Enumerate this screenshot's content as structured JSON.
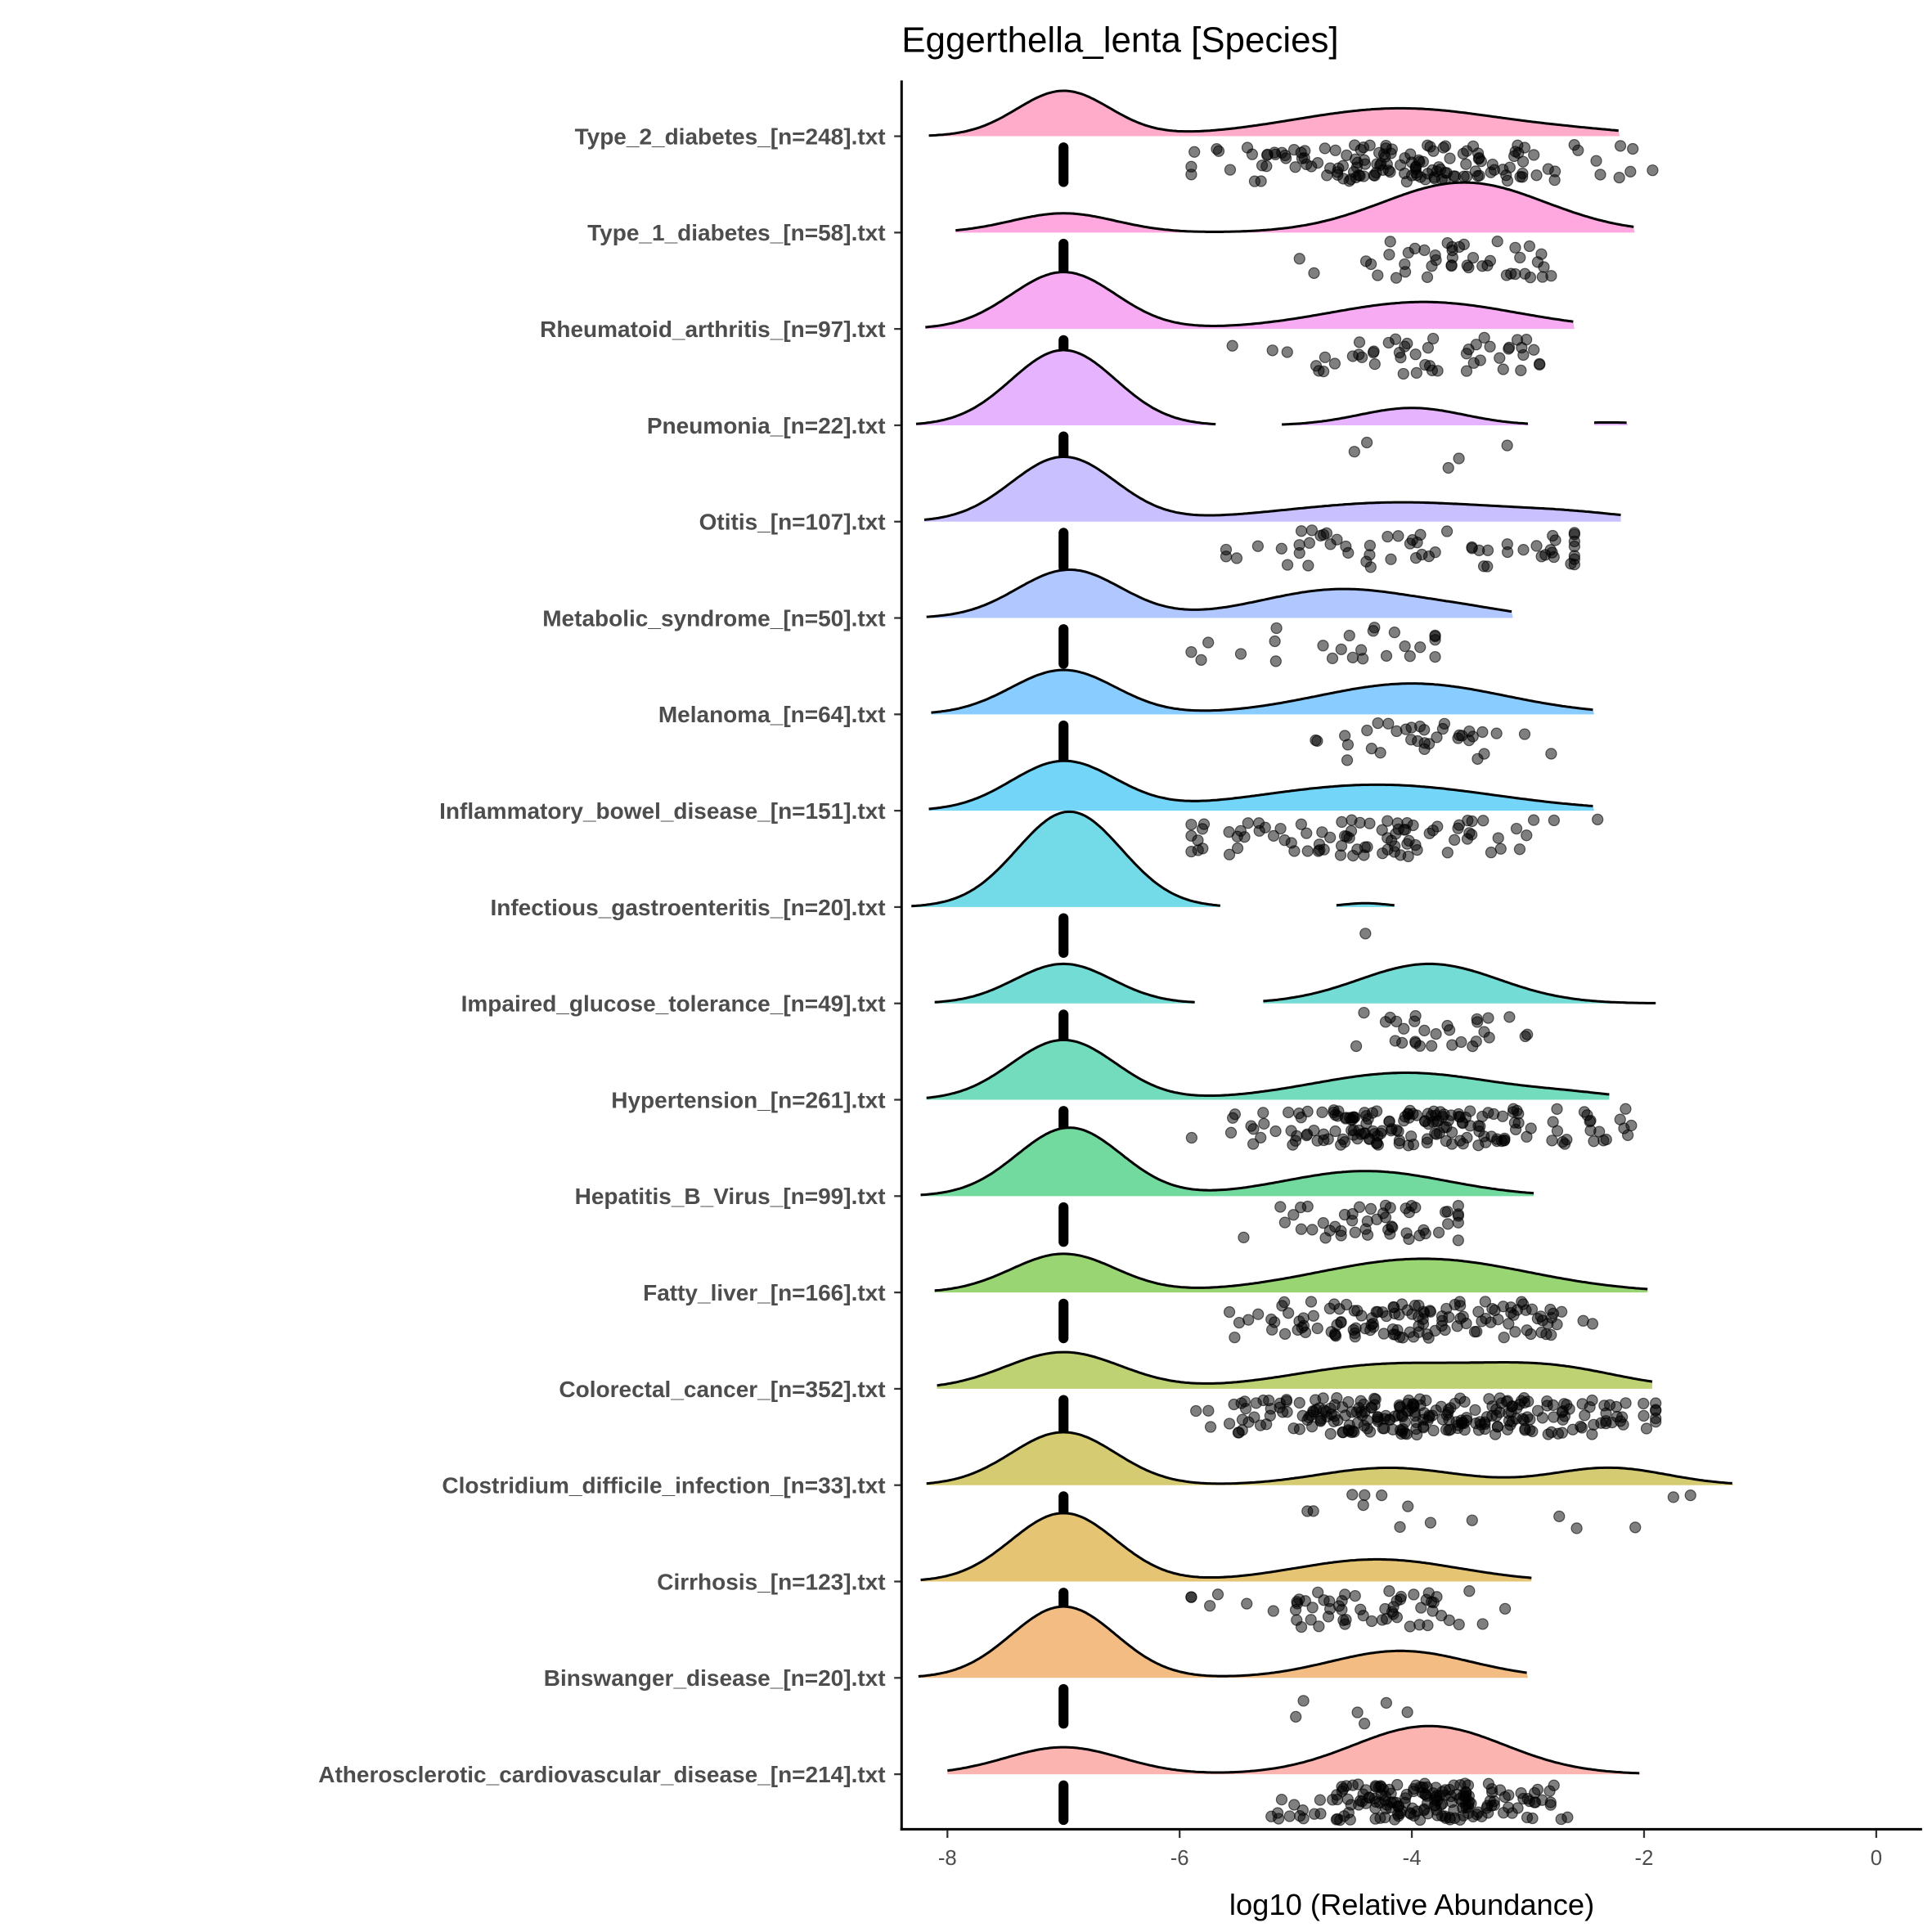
{
  "chart_data": {
    "type": "ridgeline",
    "title": "Eggerthella_lenta [Species]",
    "xlabel": "log10 (Relative Abundance)",
    "ylabel": "",
    "xlim": [
      -8.4,
      0.4
    ],
    "xticks": [
      -8,
      -6,
      -4,
      -2,
      0
    ],
    "xtick_labels": [
      "-8",
      "-6",
      "-4",
      "-2",
      "0"
    ],
    "zero_value": -7,
    "grid": false,
    "colors": [
      "#F8766D",
      "#E7851E",
      "#D09400",
      "#B2A100",
      "#89AC00",
      "#45B500",
      "#00BC51",
      "#00C087",
      "#00C0B2",
      "#00BCD6",
      "#00B3F2",
      "#29A3FF",
      "#6F9BFF",
      "#9C8DFF",
      "#D277FF",
      "#F166E8",
      "#FF61C7",
      "#FF689E"
    ],
    "series": [
      {
        "label": "Atherosclerotic_cardiovascular_disease_[n=214].txt",
        "n": 214,
        "density": [
          [
            -7.0,
            0.5,
            0.28
          ],
          [
            -3.85,
            0.65,
            0.5
          ]
        ],
        "segments": [
          [
            -8.0,
            -2.03
          ]
        ],
        "nonzero_points": 180,
        "point_range": [
          -5.5,
          -1.8
        ]
      },
      {
        "label": "Binswanger_disease_[n=20].txt",
        "n": 20,
        "density": [
          [
            -7.0,
            0.45,
            0.74
          ],
          [
            -4.1,
            0.6,
            0.28
          ]
        ],
        "segments": [
          [
            -8.25,
            -3.0
          ]
        ],
        "nonzero_points": 6,
        "point_range": [
          -5.0,
          -3.7
        ]
      },
      {
        "label": "Cirrhosis_[n=123].txt",
        "n": 123,
        "density": [
          [
            -7.0,
            0.45,
            0.71
          ],
          [
            -4.3,
            0.7,
            0.23
          ]
        ],
        "segments": [
          [
            -8.23,
            -2.97
          ]
        ],
        "nonzero_points": 60,
        "point_range": [
          -5.9,
          -2.8
        ]
      },
      {
        "label": "Clostridium_difficile_infection_[n=33].txt",
        "n": 33,
        "density": [
          [
            -7.0,
            0.45,
            0.55
          ],
          [
            -4.2,
            0.6,
            0.18
          ],
          [
            -2.3,
            0.5,
            0.18
          ]
        ],
        "segments": [
          [
            -8.18,
            -1.23
          ]
        ],
        "nonzero_points": 15,
        "point_range": [
          -4.9,
          -1.6
        ]
      },
      {
        "label": "Colorectal_cancer_[n=352].txt",
        "n": 352,
        "density": [
          [
            -7.0,
            0.5,
            0.38
          ],
          [
            -4.2,
            0.8,
            0.25
          ],
          [
            -2.8,
            0.6,
            0.2
          ]
        ],
        "segments": [
          [
            -8.09,
            -1.93
          ]
        ],
        "nonzero_points": 250,
        "point_range": [
          -6.0,
          -1.9
        ]
      },
      {
        "label": "Fatty_liver_[n=166].txt",
        "n": 166,
        "density": [
          [
            -7.0,
            0.45,
            0.4
          ],
          [
            -3.9,
            0.9,
            0.35
          ]
        ],
        "segments": [
          [
            -8.11,
            -1.97
          ]
        ],
        "nonzero_points": 130,
        "point_range": [
          -5.9,
          -2.2
        ]
      },
      {
        "label": "Hepatitis_B_Virus_[n=99].txt",
        "n": 99,
        "density": [
          [
            -6.95,
            0.45,
            0.71
          ],
          [
            -4.4,
            0.7,
            0.26
          ]
        ],
        "segments": [
          [
            -8.23,
            -2.95
          ]
        ],
        "nonzero_points": 50,
        "point_range": [
          -5.8,
          -3.6
        ]
      },
      {
        "label": "Hypertension_[n=261].txt",
        "n": 261,
        "density": [
          [
            -7.0,
            0.45,
            0.62
          ],
          [
            -4.05,
            0.8,
            0.28
          ],
          [
            -2.6,
            0.4,
            0.04
          ]
        ],
        "segments": [
          [
            -8.18,
            -2.3
          ]
        ],
        "nonzero_points": 170,
        "point_range": [
          -6.0,
          -1.7
        ]
      },
      {
        "label": "Impaired_glucose_tolerance_[n=49].txt",
        "n": 49,
        "density": [
          [
            -7.0,
            0.42,
            0.41
          ],
          [
            -3.85,
            0.6,
            0.41
          ]
        ],
        "segments": [
          [
            -8.11,
            -5.87
          ],
          [
            -5.28,
            -1.9
          ]
        ],
        "nonzero_points": 30,
        "point_range": [
          -4.7,
          -2.1
        ]
      },
      {
        "label": "Infectious_gastroenteritis_[n=20].txt",
        "n": 20,
        "density": [
          [
            -6.95,
            0.45,
            0.99
          ],
          [
            -4.4,
            0.2,
            0.04
          ]
        ],
        "segments": [
          [
            -8.31,
            -5.65
          ],
          [
            -4.65,
            -4.15
          ]
        ],
        "nonzero_points": 1,
        "point_range": [
          -4.4,
          -4.4
        ]
      },
      {
        "label": "Inflammatory_bowel_disease_[n=151].txt",
        "n": 151,
        "density": [
          [
            -7.0,
            0.45,
            0.51
          ],
          [
            -4.3,
            1.0,
            0.27
          ]
        ],
        "segments": [
          [
            -8.16,
            -2.43
          ]
        ],
        "nonzero_points": 90,
        "point_range": [
          -5.9,
          -2.4
        ]
      },
      {
        "label": "Melanoma_[n=64].txt",
        "n": 64,
        "density": [
          [
            -7.0,
            0.45,
            0.46
          ],
          [
            -4.0,
            0.8,
            0.32
          ]
        ],
        "segments": [
          [
            -8.14,
            -2.43
          ]
        ],
        "nonzero_points": 35,
        "point_range": [
          -5.8,
          -2.8
        ]
      },
      {
        "label": "Metabolic_syndrome_[n=50].txt",
        "n": 50,
        "density": [
          [
            -6.95,
            0.45,
            0.5
          ],
          [
            -4.6,
            0.7,
            0.3
          ],
          [
            -3.5,
            0.4,
            0.05
          ]
        ],
        "segments": [
          [
            -8.18,
            -3.13
          ]
        ],
        "nonzero_points": 25,
        "point_range": [
          -5.9,
          -3.8
        ]
      },
      {
        "label": "Otitis_[n=107].txt",
        "n": 107,
        "density": [
          [
            -7.0,
            0.45,
            0.67
          ],
          [
            -4.1,
            1.0,
            0.2
          ],
          [
            -2.6,
            0.5,
            0.05
          ]
        ],
        "segments": [
          [
            -8.2,
            -2.2
          ]
        ],
        "nonzero_points": 60,
        "point_range": [
          -5.6,
          -2.6
        ]
      },
      {
        "label": "Pneumonia_[n=22].txt",
        "n": 22,
        "density": [
          [
            -7.0,
            0.45,
            0.78
          ],
          [
            -4.0,
            0.45,
            0.18
          ],
          [
            -2.3,
            0.3,
            0.03
          ]
        ],
        "segments": [
          [
            -8.27,
            -5.69
          ],
          [
            -5.12,
            -2.99
          ],
          [
            -2.43,
            -2.14
          ]
        ],
        "nonzero_points": 5,
        "point_range": [
          -4.6,
          -2.2
        ]
      },
      {
        "label": "Rheumatoid_arthritis_[n=97].txt",
        "n": 97,
        "density": [
          [
            -7.0,
            0.45,
            0.59
          ],
          [
            -3.9,
            0.8,
            0.28
          ]
        ],
        "segments": [
          [
            -8.19,
            -2.6
          ]
        ],
        "nonzero_points": 50,
        "point_range": [
          -5.6,
          -2.9
        ]
      },
      {
        "label": "Type_1_diabetes_[n=58].txt",
        "n": 58,
        "density": [
          [
            -7.0,
            0.45,
            0.2
          ],
          [
            -3.55,
            0.7,
            0.52
          ]
        ],
        "segments": [
          [
            -7.93,
            -2.08
          ]
        ],
        "nonzero_points": 45,
        "point_range": [
          -5.8,
          -2.8
        ]
      },
      {
        "label": "Type_2_diabetes_[n=248].txt",
        "n": 248,
        "density": [
          [
            -7.0,
            0.4,
            0.47
          ],
          [
            -4.1,
            0.9,
            0.29
          ],
          [
            -2.5,
            0.5,
            0.03
          ]
        ],
        "segments": [
          [
            -8.16,
            -2.21
          ]
        ],
        "nonzero_points": 150,
        "point_range": [
          -5.9,
          -1.8
        ]
      }
    ]
  }
}
